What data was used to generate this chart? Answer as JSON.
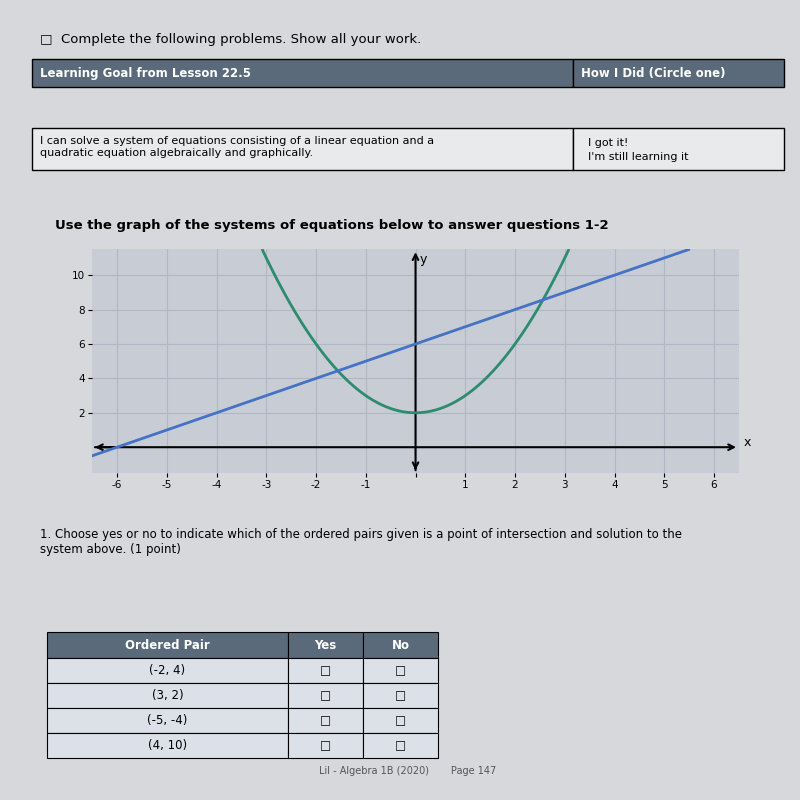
{
  "title_text": "Use the graph of the systems of equations below to answer questions 1-2",
  "header1": "Learning Goal from Lesson 22.5",
  "header2": "How I Did (Circle one)",
  "goal_text": "I can solve a system of equations consisting of a linear equation and a\nquadratic equation algebraically and graphically.",
  "got_it": "I got it!",
  "still_learning": "I'm still learning it",
  "checkbox_text": "□  Complete the following problems. Show all your work.",
  "q1_text": "1. Choose yes or no to indicate which of the ordered pairs given is a point of intersection and solution to the\nsystem above. (1 point)",
  "footer": "Lil - Algebra 1B (2020)       Page 147",
  "parabola_color": "#2d8c6e",
  "linear_color": "#4472c4",
  "axis_color": "#000000",
  "grid_color": "#b0b8c8",
  "bg_color": "#d6d8dc",
  "plot_bg": "#c8ccd4",
  "table_header_bg": "#5a6a7a",
  "table_header_text": "#ffffff",
  "table_row_bg": "#dce0e8",
  "table_border": "#888888",
  "xlim": [
    -6.5,
    6.5
  ],
  "ylim": [
    -1.5,
    11.5
  ],
  "xticks": [
    -6,
    -5,
    -4,
    -3,
    -2,
    -1,
    0,
    1,
    2,
    3,
    4,
    5,
    6
  ],
  "yticks": [
    2,
    4,
    6,
    8,
    10
  ],
  "ordered_pairs": [
    "(-2, 4)",
    "(3, 2)",
    "(-5, -4)",
    "(4, 10)"
  ]
}
